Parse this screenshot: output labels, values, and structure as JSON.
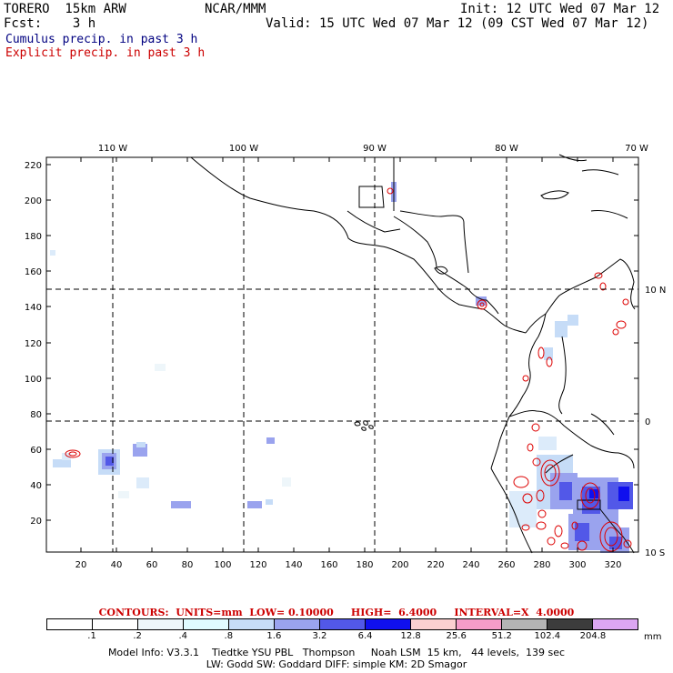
{
  "header": {
    "model": "TORERO  15km ARW",
    "center": "NCAR/MMM",
    "init": "Init: 12 UTC Wed 07 Mar 12",
    "fcst": "Fcst:    3 h",
    "valid": "Valid: 15 UTC Wed 07 Mar 12 (09 CST Wed 07 Mar 12)",
    "cumulus_label": "Cumulus precip. in past 3 h",
    "explicit_label": "Explicit precip. in past 3 h",
    "cumulus_color": "#000080",
    "explicit_color": "#cc0000"
  },
  "map": {
    "lon_labels": [
      "110 W",
      "100 W",
      "90 W",
      "80 W",
      "70 W"
    ],
    "lat_labels": [
      "10 N",
      "0",
      "10 S"
    ],
    "y_ticks": [
      "220",
      "200",
      "180",
      "160",
      "140",
      "120",
      "100",
      "80",
      "60",
      "40",
      "20"
    ],
    "x_ticks": [
      "20",
      "40",
      "60",
      "80",
      "100",
      "120",
      "140",
      "160",
      "180",
      "200",
      "220",
      "240",
      "260",
      "280",
      "300",
      "320"
    ]
  },
  "contours_text": "CONTOURS:  UNITS=mm  LOW= 0.10000     HIGH=  6.4000     INTERVAL=X  4.0000",
  "colorbar": {
    "labels": [
      ".1",
      ".2",
      ".4",
      ".8",
      "1.6",
      "3.2",
      "6.4",
      "12.8",
      "25.6",
      "51.2",
      "102.4",
      "204.8"
    ],
    "colors": [
      "#ffffff",
      "#ffffff",
      "#eef6fa",
      "#e0fbff",
      "#c6dcf7",
      "#9aa3ee",
      "#5258e8",
      "#1010ee",
      "#fbd0d0",
      "#f59cc8",
      "#b4b4b4",
      "#3c3c3c",
      "#dca6f2"
    ],
    "unit": "mm"
  },
  "footer": {
    "line1": "Model Info: V3.3.1    Tiedtke YSU PBL   Thompson     Noah LSM  15 km,   44 levels,  139 sec",
    "line2": "LW: Godd SW: Goddard DIFF: simple KM: 2D Smagor"
  }
}
